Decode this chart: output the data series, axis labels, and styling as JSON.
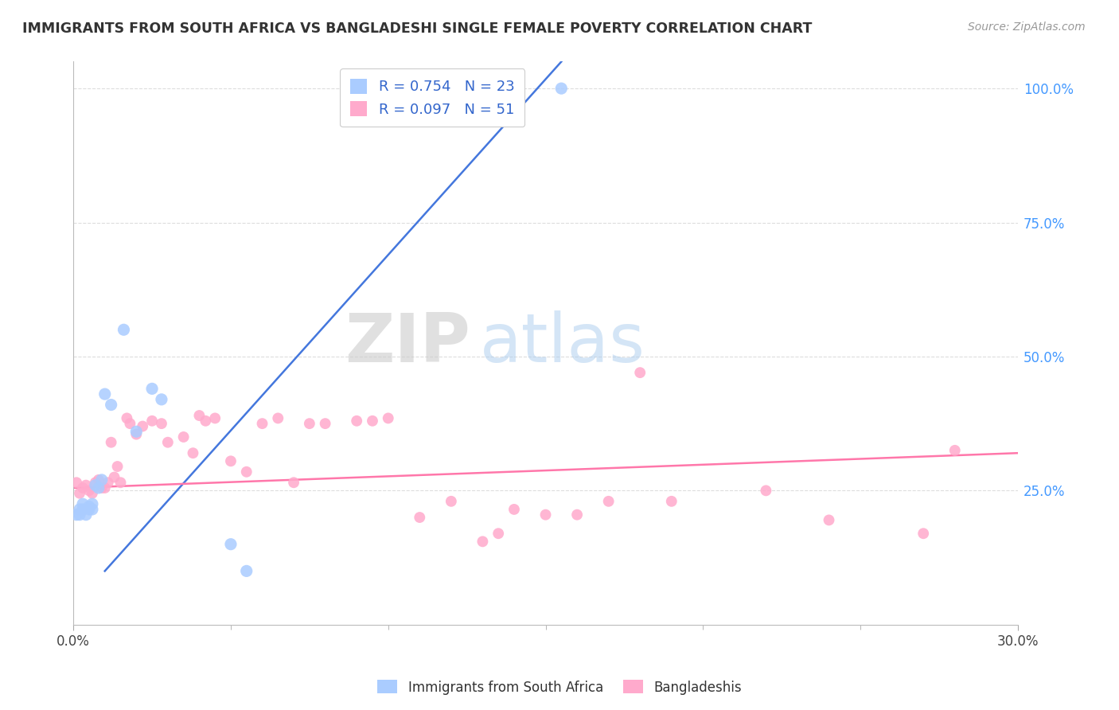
{
  "title": "IMMIGRANTS FROM SOUTH AFRICA VS BANGLADESHI SINGLE FEMALE POVERTY CORRELATION CHART",
  "source": "Source: ZipAtlas.com",
  "ylabel": "Single Female Poverty",
  "xmin": 0.0,
  "xmax": 0.3,
  "ymin": 0.0,
  "ymax": 1.05,
  "x_tick_labels": [
    "0.0%",
    "30.0%"
  ],
  "x_tick_values": [
    0.0,
    0.3
  ],
  "y_tick_labels": [
    "25.0%",
    "50.0%",
    "75.0%",
    "100.0%"
  ],
  "y_tick_values": [
    0.25,
    0.5,
    0.75,
    1.0
  ],
  "r_blue": 0.754,
  "n_blue": 23,
  "r_pink": 0.097,
  "n_pink": 51,
  "legend_label_blue": "Immigrants from South Africa",
  "legend_label_pink": "Bangladeshis",
  "blue_color": "#aaccff",
  "pink_color": "#ffaacc",
  "blue_line_color": "#4477dd",
  "pink_line_color": "#ff77aa",
  "blue_scatter": [
    [
      0.001,
      0.205
    ],
    [
      0.002,
      0.215
    ],
    [
      0.002,
      0.205
    ],
    [
      0.003,
      0.215
    ],
    [
      0.003,
      0.225
    ],
    [
      0.004,
      0.205
    ],
    [
      0.005,
      0.22
    ],
    [
      0.005,
      0.215
    ],
    [
      0.006,
      0.225
    ],
    [
      0.006,
      0.215
    ],
    [
      0.007,
      0.26
    ],
    [
      0.008,
      0.255
    ],
    [
      0.009,
      0.27
    ],
    [
      0.01,
      0.43
    ],
    [
      0.012,
      0.41
    ],
    [
      0.016,
      0.55
    ],
    [
      0.02,
      0.36
    ],
    [
      0.025,
      0.44
    ],
    [
      0.028,
      0.42
    ],
    [
      0.05,
      0.15
    ],
    [
      0.055,
      0.1
    ],
    [
      0.13,
      1.0
    ],
    [
      0.155,
      1.0
    ]
  ],
  "pink_scatter": [
    [
      0.001,
      0.265
    ],
    [
      0.002,
      0.245
    ],
    [
      0.003,
      0.255
    ],
    [
      0.004,
      0.26
    ],
    [
      0.005,
      0.25
    ],
    [
      0.006,
      0.245
    ],
    [
      0.007,
      0.265
    ],
    [
      0.008,
      0.27
    ],
    [
      0.009,
      0.255
    ],
    [
      0.01,
      0.255
    ],
    [
      0.011,
      0.265
    ],
    [
      0.012,
      0.34
    ],
    [
      0.013,
      0.275
    ],
    [
      0.014,
      0.295
    ],
    [
      0.015,
      0.265
    ],
    [
      0.017,
      0.385
    ],
    [
      0.018,
      0.375
    ],
    [
      0.02,
      0.355
    ],
    [
      0.022,
      0.37
    ],
    [
      0.025,
      0.38
    ],
    [
      0.028,
      0.375
    ],
    [
      0.03,
      0.34
    ],
    [
      0.035,
      0.35
    ],
    [
      0.038,
      0.32
    ],
    [
      0.04,
      0.39
    ],
    [
      0.042,
      0.38
    ],
    [
      0.045,
      0.385
    ],
    [
      0.05,
      0.305
    ],
    [
      0.055,
      0.285
    ],
    [
      0.06,
      0.375
    ],
    [
      0.065,
      0.385
    ],
    [
      0.07,
      0.265
    ],
    [
      0.075,
      0.375
    ],
    [
      0.08,
      0.375
    ],
    [
      0.09,
      0.38
    ],
    [
      0.095,
      0.38
    ],
    [
      0.1,
      0.385
    ],
    [
      0.11,
      0.2
    ],
    [
      0.12,
      0.23
    ],
    [
      0.13,
      0.155
    ],
    [
      0.135,
      0.17
    ],
    [
      0.14,
      0.215
    ],
    [
      0.15,
      0.205
    ],
    [
      0.16,
      0.205
    ],
    [
      0.17,
      0.23
    ],
    [
      0.18,
      0.47
    ],
    [
      0.19,
      0.23
    ],
    [
      0.22,
      0.25
    ],
    [
      0.24,
      0.195
    ],
    [
      0.27,
      0.17
    ],
    [
      0.28,
      0.325
    ]
  ],
  "blue_line_x": [
    0.01,
    0.155
  ],
  "blue_line_y": [
    0.1,
    1.05
  ],
  "pink_line_x": [
    0.0,
    0.3
  ],
  "pink_line_y": [
    0.255,
    0.32
  ],
  "watermark_zip": "ZIP",
  "watermark_atlas": "atlas",
  "background_color": "#ffffff",
  "grid_color": "#dddddd"
}
